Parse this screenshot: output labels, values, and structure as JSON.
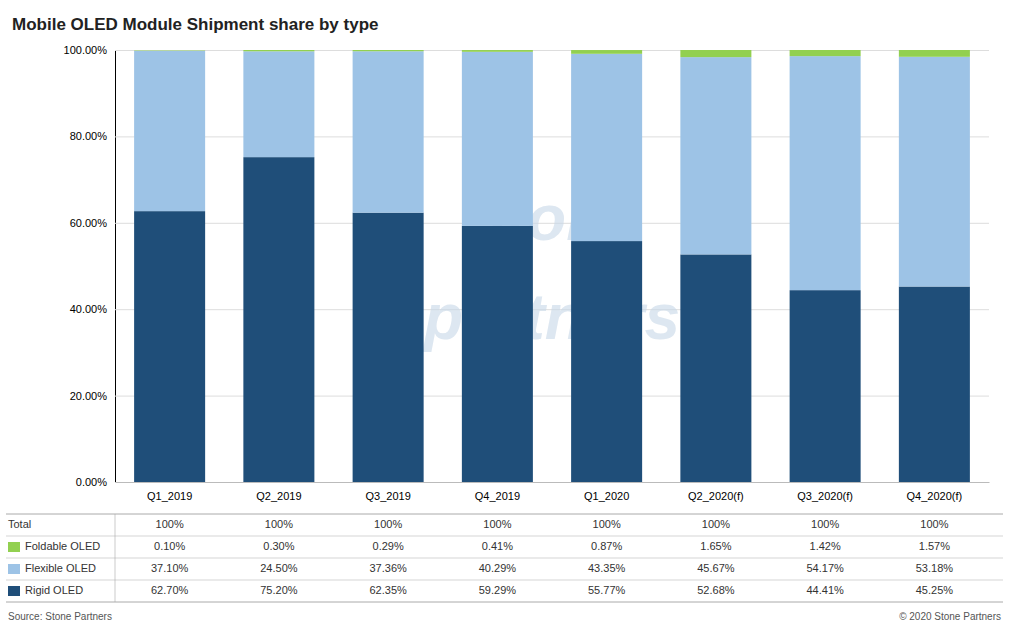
{
  "chart_data": {
    "type": "bar",
    "stacked": true,
    "title": "Mobile OLED Module Shipment share by type",
    "categories": [
      "Q1_2019",
      "Q2_2019",
      "Q3_2019",
      "Q4_2019",
      "Q1_2020",
      "Q2_2020(f)",
      "Q3_2020(f)",
      "Q4_2020(f)"
    ],
    "series": [
      {
        "name": "Rigid OLED",
        "color": "#1F4E79",
        "values": [
          62.7,
          75.2,
          62.35,
          59.29,
          55.77,
          52.68,
          44.41,
          45.25
        ],
        "value_labels": [
          "62.70%",
          "75.20%",
          "62.35%",
          "59.29%",
          "55.77%",
          "52.68%",
          "44.41%",
          "45.25%"
        ]
      },
      {
        "name": "Flexible OLED",
        "color": "#9DC3E6",
        "values": [
          37.1,
          24.5,
          37.36,
          40.29,
          43.35,
          45.67,
          54.17,
          53.18
        ],
        "value_labels": [
          "37.10%",
          "24.50%",
          "37.36%",
          "40.29%",
          "43.35%",
          "45.67%",
          "54.17%",
          "53.18%"
        ]
      },
      {
        "name": "Foldable OLED",
        "color": "#92D050",
        "values": [
          0.1,
          0.3,
          0.29,
          0.41,
          0.87,
          1.65,
          1.42,
          1.57
        ],
        "value_labels": [
          "0.10%",
          "0.30%",
          "0.29%",
          "0.41%",
          "0.87%",
          "1.65%",
          "1.42%",
          "1.57%"
        ]
      }
    ],
    "total": {
      "name": "Total",
      "values": [
        100,
        100,
        100,
        100,
        100,
        100,
        100,
        100
      ],
      "value_labels": [
        "100%",
        "100%",
        "100%",
        "100%",
        "100%",
        "100%",
        "100%",
        "100%"
      ]
    },
    "ylim": [
      0,
      100
    ],
    "yticks": [
      {
        "value": 0,
        "label": "0.00%"
      },
      {
        "value": 20,
        "label": "20.00%"
      },
      {
        "value": 40,
        "label": "40.00%"
      },
      {
        "value": 60,
        "label": "60.00%"
      },
      {
        "value": 80,
        "label": "80.00%"
      },
      {
        "value": 100,
        "label": "100.00%"
      }
    ],
    "grid": true,
    "watermark": [
      "Stone",
      "partners"
    ],
    "source": "Source: Stone Partners",
    "copyright": "© 2020 Stone Partners"
  }
}
